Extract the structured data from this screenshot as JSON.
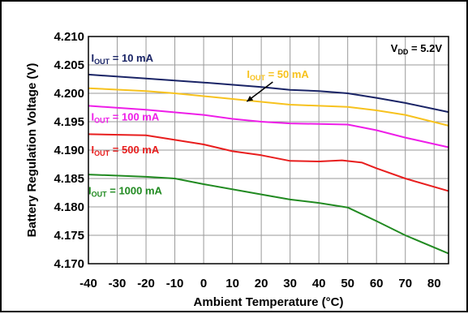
{
  "chart_data": {
    "type": "line",
    "xlabel": "Ambient Temperature (°C)",
    "ylabel": "Battery Regulation Voltage (V)",
    "xlim": [
      -40,
      85
    ],
    "ylim": [
      4.17,
      4.21
    ],
    "x_ticks": [
      "-40",
      "-30",
      "-20",
      "-10",
      "0",
      "10",
      "20",
      "30",
      "40",
      "50",
      "60",
      "70",
      "80"
    ],
    "y_ticks": [
      "4.210",
      "4.205",
      "4.200",
      "4.195",
      "4.190",
      "4.185",
      "4.180",
      "4.175",
      "4.170"
    ],
    "grid": true,
    "annotation": {
      "main": "V",
      "sub": "DD",
      "suffix": " = 5.2V"
    },
    "series": [
      {
        "name_main": "I",
        "name_sub": "OUT",
        "name_suffix": " = 10 mA",
        "color": "#1a2466",
        "points": [
          [
            -40,
            4.2033
          ],
          [
            -20,
            4.2026
          ],
          [
            0,
            4.2019
          ],
          [
            20,
            4.2011
          ],
          [
            30,
            4.2006
          ],
          [
            40,
            4.2004
          ],
          [
            50,
            4.2
          ],
          [
            60,
            4.1992
          ],
          [
            70,
            4.1983
          ],
          [
            85,
            4.1967
          ]
        ]
      },
      {
        "name_main": "I",
        "name_sub": "OUT",
        "name_suffix": " = 50 mA",
        "color": "#f7c21e",
        "points": [
          [
            -40,
            4.2009
          ],
          [
            -20,
            4.2004
          ],
          [
            -10,
            4.2
          ],
          [
            0,
            4.1995
          ],
          [
            20,
            4.1985
          ],
          [
            30,
            4.198
          ],
          [
            40,
            4.1978
          ],
          [
            50,
            4.1976
          ],
          [
            60,
            4.197
          ],
          [
            70,
            4.1962
          ],
          [
            85,
            4.1943
          ]
        ]
      },
      {
        "name_main": "I",
        "name_sub": "OUT",
        "name_suffix": " = 100 mA",
        "color": "#ee1ee8",
        "points": [
          [
            -40,
            4.1978
          ],
          [
            -20,
            4.1971
          ],
          [
            0,
            4.1962
          ],
          [
            10,
            4.1955
          ],
          [
            20,
            4.195
          ],
          [
            30,
            4.1947
          ],
          [
            40,
            4.1946
          ],
          [
            50,
            4.1945
          ],
          [
            60,
            4.1935
          ],
          [
            70,
            4.1922
          ],
          [
            85,
            4.1905
          ]
        ]
      },
      {
        "name_main": "I",
        "name_sub": "OUT",
        "name_suffix": " = 500 mA",
        "color": "#e81e1e",
        "points": [
          [
            -40,
            4.1928
          ],
          [
            -20,
            4.1926
          ],
          [
            -10,
            4.1918
          ],
          [
            0,
            4.191
          ],
          [
            10,
            4.1898
          ],
          [
            20,
            4.1891
          ],
          [
            30,
            4.1881
          ],
          [
            40,
            4.188
          ],
          [
            48,
            4.1882
          ],
          [
            55,
            4.1878
          ],
          [
            60,
            4.1868
          ],
          [
            70,
            4.185
          ],
          [
            85,
            4.1828
          ]
        ]
      },
      {
        "name_main": "I",
        "name_sub": "OUT",
        "name_suffix": " = 1000 mA",
        "color": "#218a21",
        "points": [
          [
            -40,
            4.1857
          ],
          [
            -20,
            4.1853
          ],
          [
            -10,
            4.185
          ],
          [
            0,
            4.184
          ],
          [
            20,
            4.1822
          ],
          [
            30,
            4.1813
          ],
          [
            40,
            4.1807
          ],
          [
            50,
            4.1799
          ],
          [
            60,
            4.1775
          ],
          [
            70,
            4.175
          ],
          [
            85,
            4.1718
          ]
        ]
      }
    ]
  }
}
